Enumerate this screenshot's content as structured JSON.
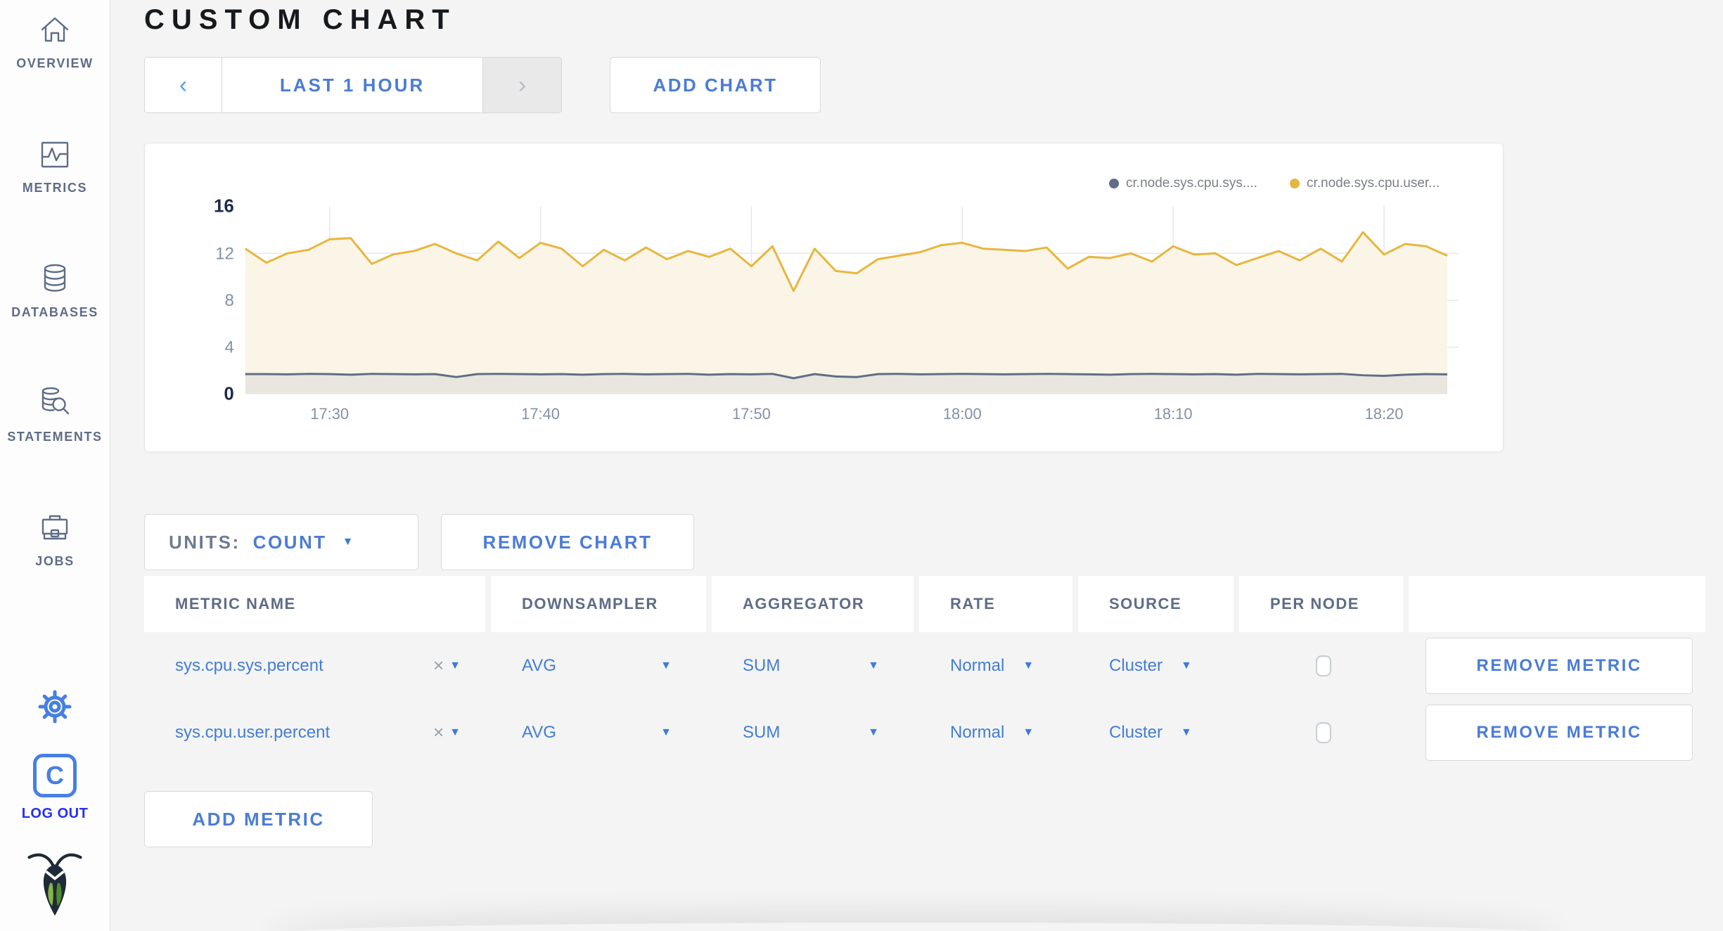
{
  "sidebar": {
    "items": [
      {
        "label": "OVERVIEW",
        "icon": "home-icon"
      },
      {
        "label": "METRICS",
        "icon": "metrics-icon"
      },
      {
        "label": "DATABASES",
        "icon": "databases-icon"
      },
      {
        "label": "STATEMENTS",
        "icon": "statements-icon"
      },
      {
        "label": "JOBS",
        "icon": "jobs-icon"
      }
    ],
    "logout": {
      "label": "LOG OUT",
      "badge_letter": "C"
    }
  },
  "header": {
    "title": "CUSTOM CHART"
  },
  "controls": {
    "prev_symbol": "‹",
    "next_symbol": "›",
    "time_window": "LAST 1 HOUR",
    "add_chart": "ADD CHART"
  },
  "units": {
    "label": "UNITS:",
    "value": "COUNT"
  },
  "buttons": {
    "remove_chart": "REMOVE CHART",
    "remove_metric": "REMOVE METRIC",
    "add_metric": "ADD METRIC"
  },
  "ui": {
    "caret": "▼",
    "clear": "×"
  },
  "table": {
    "headers": [
      "METRIC NAME",
      "DOWNSAMPLER",
      "AGGREGATOR",
      "RATE",
      "SOURCE",
      "PER NODE"
    ],
    "rows": [
      {
        "metric": "sys.cpu.sys.percent",
        "downsampler": "AVG",
        "aggregator": "SUM",
        "rate": "Normal",
        "source": "Cluster",
        "per_node_checked": false
      },
      {
        "metric": "sys.cpu.user.percent",
        "downsampler": "AVG",
        "aggregator": "SUM",
        "rate": "Normal",
        "source": "Cluster",
        "per_node_checked": false
      }
    ]
  },
  "colors": {
    "accent_blue": "#4B7CD6",
    "slate": "#5F6C87",
    "logout_blue": "#2430F0",
    "grid": "#E7E7E7"
  },
  "chart_data": {
    "type": "area",
    "title": "",
    "xlabel": "",
    "ylabel": "",
    "ylim": [
      0,
      16
    ],
    "y_ticks": [
      0,
      4,
      8,
      12,
      16
    ],
    "y_gridlines": [
      4,
      8,
      12
    ],
    "grid": true,
    "legend_position": "top-right",
    "x_minutes_start": "17:26",
    "x_ticks": [
      {
        "index": 4,
        "label": "17:30"
      },
      {
        "index": 14,
        "label": "17:40"
      },
      {
        "index": 24,
        "label": "17:50"
      },
      {
        "index": 34,
        "label": "18:00"
      },
      {
        "index": 44,
        "label": "18:10"
      },
      {
        "index": 54,
        "label": "18:20"
      }
    ],
    "series": [
      {
        "name": "cr.node.sys.cpu.sys....",
        "color": "#616D87",
        "fill": "#E9E6DF",
        "values": [
          1.7,
          1.7,
          1.68,
          1.72,
          1.7,
          1.65,
          1.72,
          1.7,
          1.68,
          1.7,
          1.45,
          1.7,
          1.72,
          1.7,
          1.68,
          1.7,
          1.65,
          1.7,
          1.72,
          1.68,
          1.7,
          1.72,
          1.65,
          1.7,
          1.68,
          1.72,
          1.35,
          1.7,
          1.5,
          1.45,
          1.7,
          1.72,
          1.68,
          1.7,
          1.72,
          1.7,
          1.68,
          1.7,
          1.72,
          1.7,
          1.68,
          1.65,
          1.7,
          1.72,
          1.7,
          1.68,
          1.7,
          1.65,
          1.72,
          1.7,
          1.68,
          1.7,
          1.72,
          1.6,
          1.55,
          1.65,
          1.7,
          1.68
        ]
      },
      {
        "name": "cr.node.sys.cpu.user...",
        "color": "#E7B63F",
        "fill": "#FAF5E7",
        "values": [
          12.4,
          11.2,
          12.0,
          12.3,
          13.2,
          13.3,
          11.1,
          11.9,
          12.2,
          12.8,
          12.0,
          11.4,
          13.0,
          11.6,
          12.9,
          12.4,
          10.9,
          12.3,
          11.4,
          12.5,
          11.5,
          12.2,
          11.7,
          12.4,
          10.9,
          12.6,
          8.8,
          12.4,
          10.5,
          10.3,
          11.5,
          11.8,
          12.1,
          12.7,
          12.9,
          12.4,
          12.3,
          12.2,
          12.5,
          10.7,
          11.7,
          11.6,
          12.0,
          11.3,
          12.6,
          11.9,
          12.0,
          11.0,
          11.6,
          12.2,
          11.4,
          12.4,
          11.3,
          13.8,
          11.9,
          12.8,
          12.6,
          11.8
        ]
      }
    ]
  }
}
